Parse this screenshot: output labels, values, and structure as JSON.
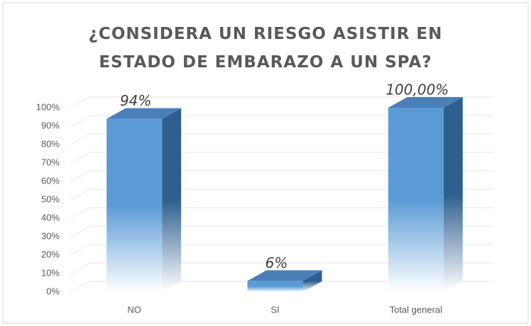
{
  "chart_data": {
    "type": "bar3d",
    "title": "¿CONSIDERA UN RIESGO ASISTIR EN ESTADO DE EMBARAZO A UN SPA?",
    "categories": [
      "NO",
      "SI",
      "Total general"
    ],
    "values": [
      94,
      6,
      100
    ],
    "value_labels": [
      "94%",
      "6%",
      "100,00%"
    ],
    "color": "#5b9bd5",
    "ylim": [
      0,
      100
    ],
    "yticks": [
      {
        "value": 0,
        "label": "0%"
      },
      {
        "value": 10,
        "label": "10%"
      },
      {
        "value": 20,
        "label": "20%"
      },
      {
        "value": 30,
        "label": "30%"
      },
      {
        "value": 40,
        "label": "40%"
      },
      {
        "value": 50,
        "label": "50%"
      },
      {
        "value": 60,
        "label": "60%"
      },
      {
        "value": 70,
        "label": "70%"
      },
      {
        "value": 80,
        "label": "80%"
      },
      {
        "value": 90,
        "label": "90%"
      },
      {
        "value": 100,
        "label": "100%"
      }
    ],
    "grid": true
  }
}
